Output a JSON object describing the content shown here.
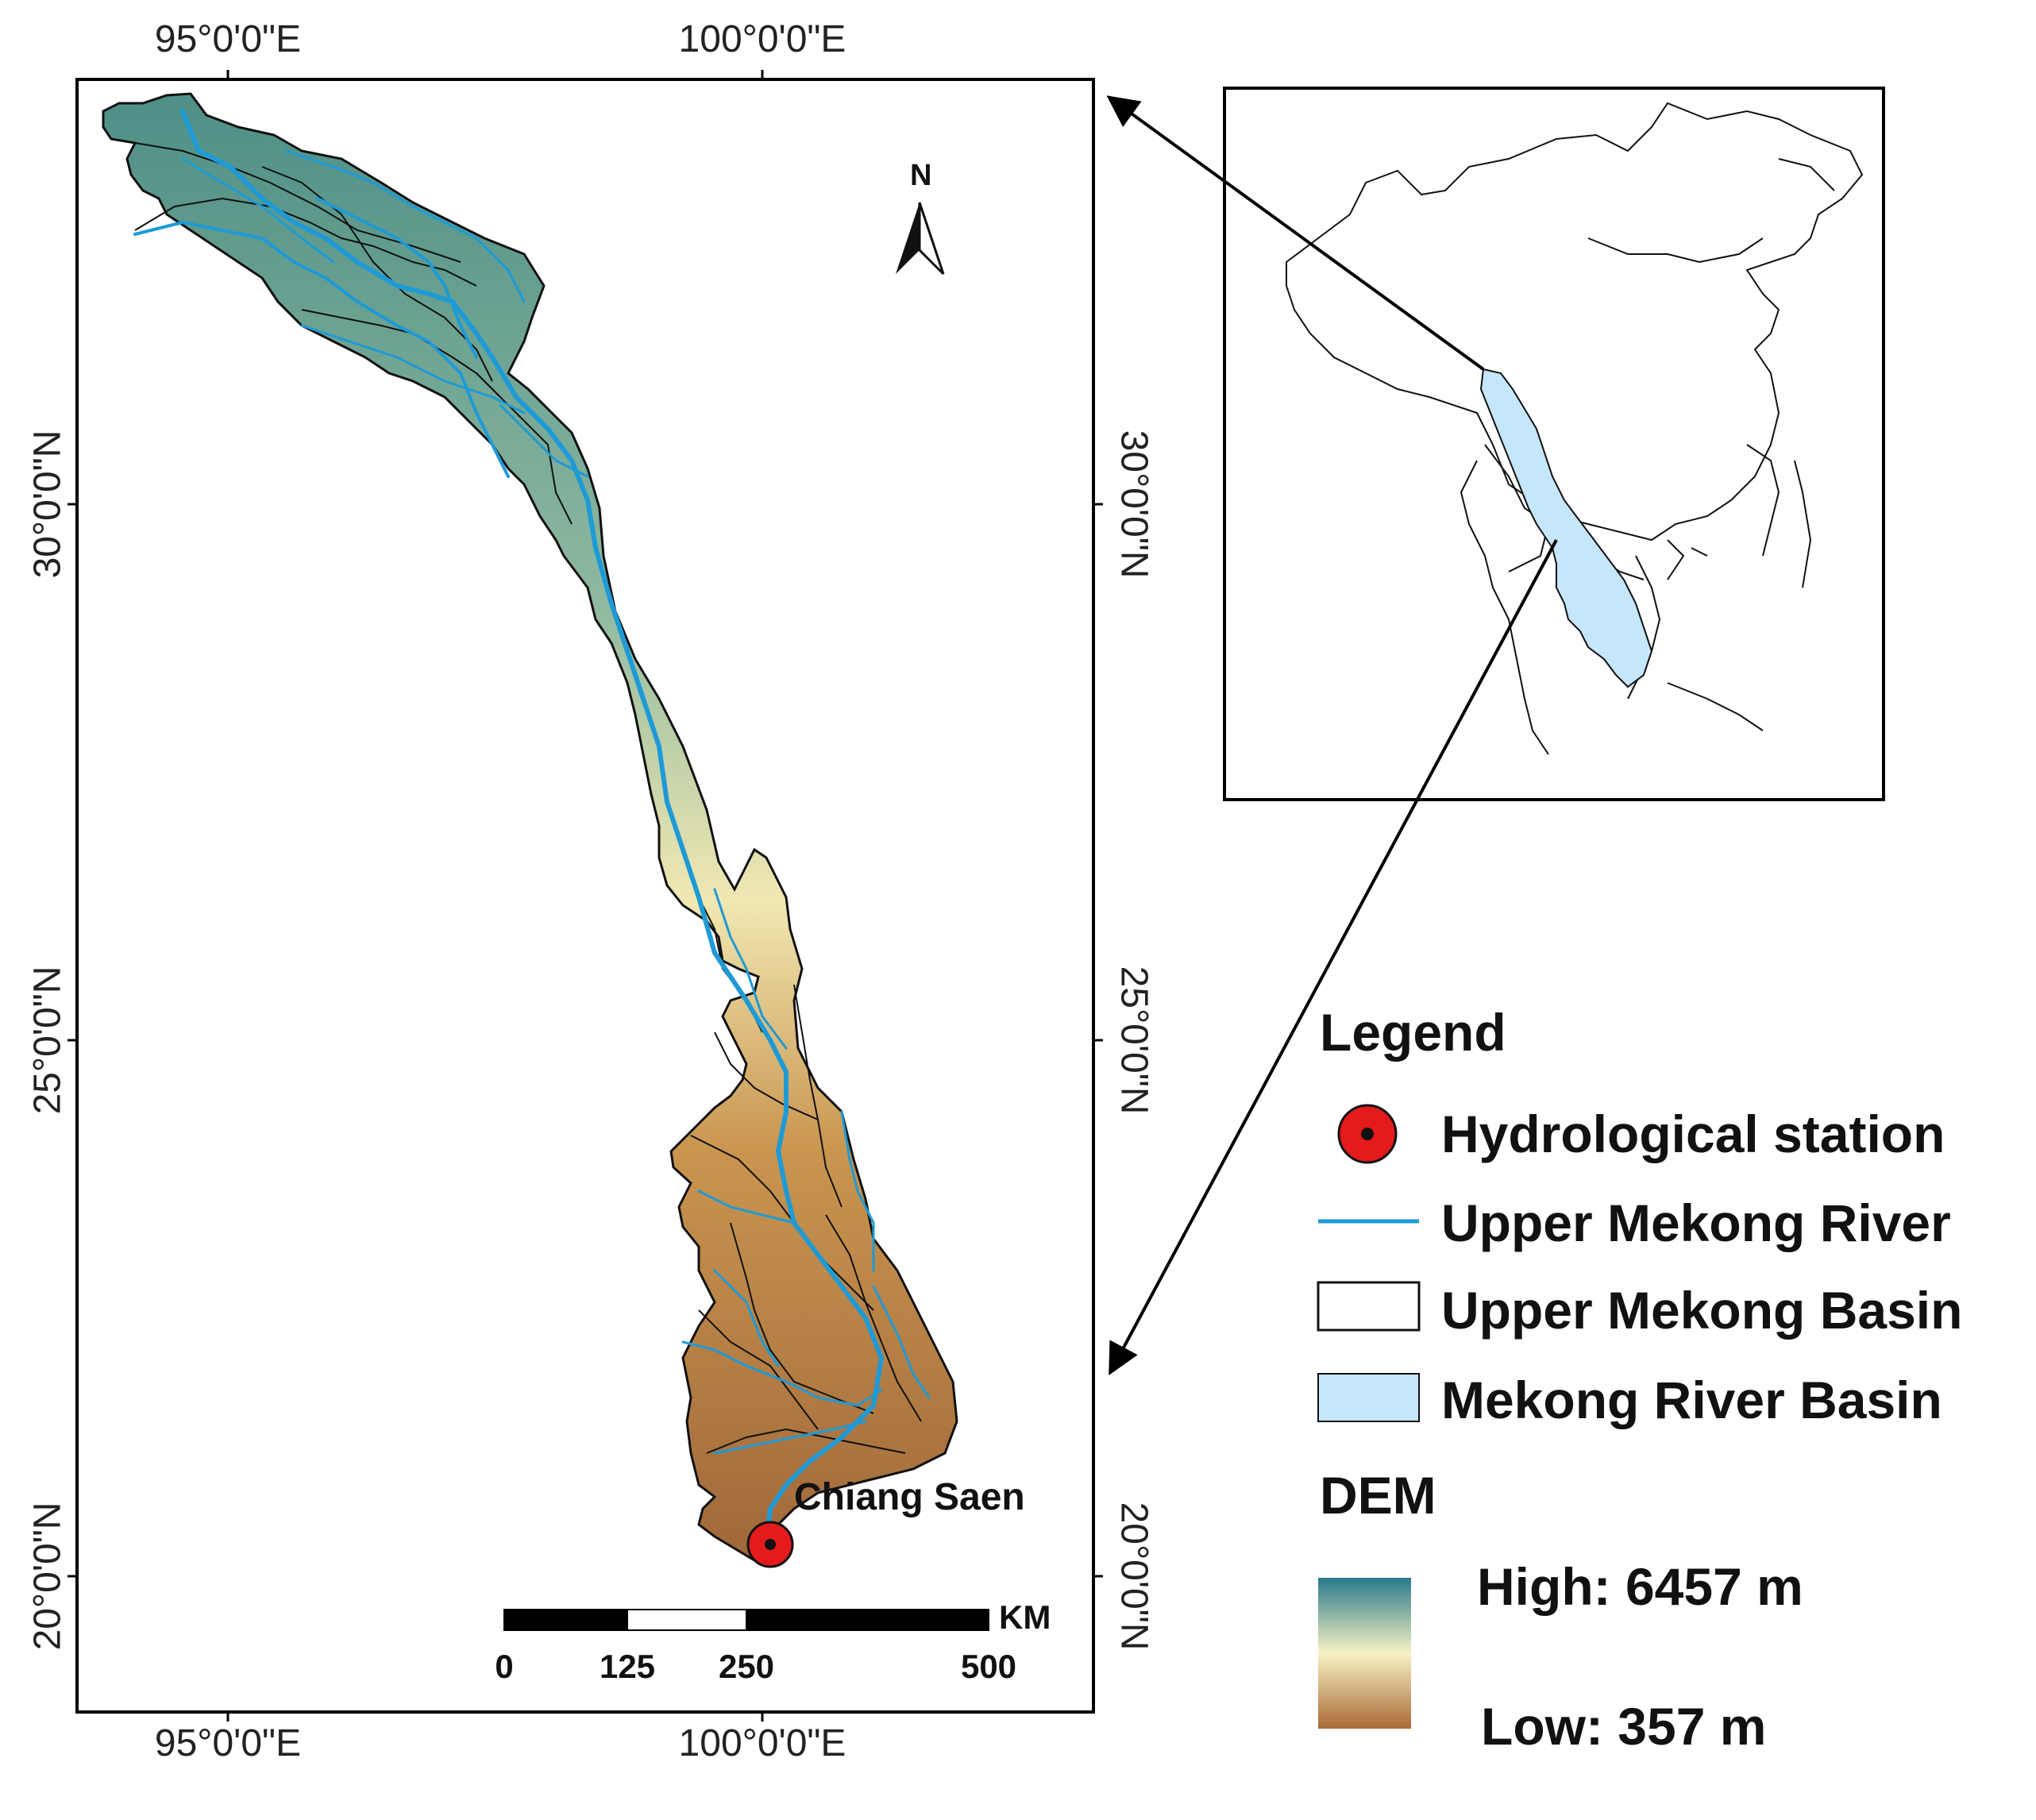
{
  "map": {
    "coordinates": {
      "top_lon": [
        "95°0'0\"E",
        "100°0'0\"E"
      ],
      "bottom_lon": [
        "95°0'0\"E",
        "100°0'0\"E"
      ],
      "left_lat": [
        "30°0'0\"N",
        "25°0'0\"N",
        "20°0'0\"N"
      ],
      "right_lat": [
        "30°0'0\"N",
        "25°0'0\"N",
        "20°0'0\"N"
      ]
    },
    "north_arrow_label": "N",
    "station_label": "Chiang Saen",
    "scale_bar": {
      "labels": [
        "0",
        "125",
        "250",
        "500"
      ],
      "unit": "KM"
    }
  },
  "legend": {
    "title": "Legend",
    "items": [
      {
        "label": "Hydrological station",
        "symbol": "red-circle"
      },
      {
        "label": "Upper Mekong River",
        "symbol": "blue-line"
      },
      {
        "label": "Upper Mekong Basin",
        "symbol": "white-box"
      },
      {
        "label": "Mekong River Basin",
        "symbol": "lightblue-box"
      }
    ],
    "dem_title": "DEM",
    "dem_high": "High: 6457 m",
    "dem_low": "Low: 357 m"
  },
  "colors": {
    "river": "#1e9ad6",
    "mekong_basin_fill": "#c6e6fb",
    "station": "#e41a1c",
    "dem_high": "#2a7a8a",
    "dem_mid": "#f7f2c4",
    "dem_low": "#a86a37"
  }
}
